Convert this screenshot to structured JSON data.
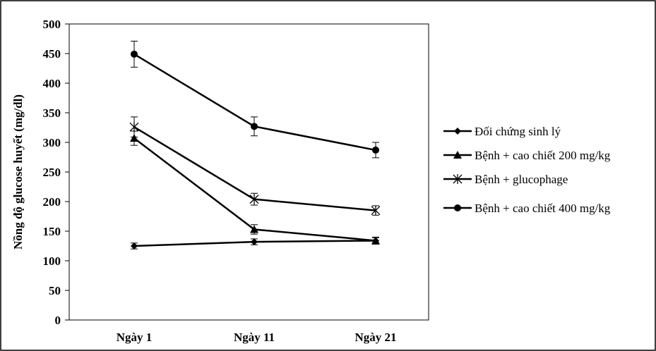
{
  "chart_data": {
    "type": "line",
    "title": "",
    "xlabel": "",
    "ylabel": "Nồng độ glucose huyết (mg/dl)",
    "categories": [
      "Ngày 1",
      "Ngày 11",
      "Ngày 21"
    ],
    "ylim": [
      0,
      500
    ],
    "yticks": [
      0,
      50,
      100,
      150,
      200,
      250,
      300,
      350,
      400,
      450,
      500
    ],
    "grid": false,
    "legend_position": "right",
    "line_color": "#000000",
    "series": [
      {
        "name": "Đối chứng sinh lý",
        "marker": "diamond",
        "values": [
          125,
          132,
          134
        ],
        "errors": [
          5,
          5,
          5
        ]
      },
      {
        "name": "Bệnh + cao chiết 200 mg/kg",
        "marker": "triangle",
        "values": [
          307,
          153,
          134
        ],
        "errors": [
          12,
          8,
          6
        ]
      },
      {
        "name": "Bệnh + glucophage",
        "marker": "star",
        "values": [
          326,
          204,
          185
        ],
        "errors": [
          17,
          10,
          8
        ]
      },
      {
        "name": "Bệnh + cao chiết 400 mg/kg",
        "marker": "circle",
        "values": [
          449,
          327,
          287
        ],
        "errors": [
          22,
          16,
          13
        ]
      }
    ]
  }
}
